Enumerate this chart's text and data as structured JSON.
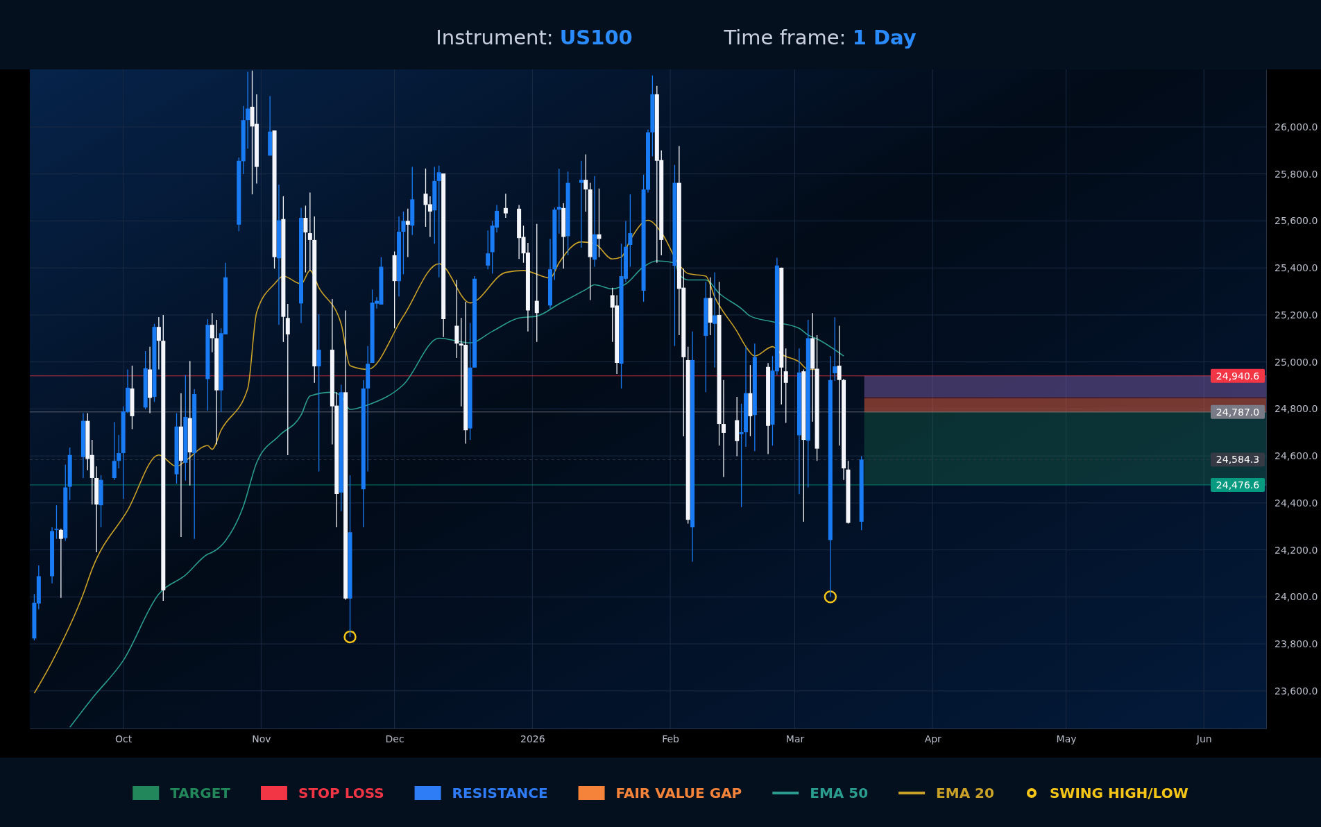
{
  "chart_data": {
    "type": "candlestick",
    "title": "Instrument: US100",
    "subtitle": "Time frame: 1 Day",
    "x": [
      "2025-09-11",
      "2025-09-12",
      "2025-09-15",
      "2025-09-16",
      "2025-09-17",
      "2025-09-18",
      "2025-09-19",
      "2025-09-22",
      "2025-09-23",
      "2025-09-24",
      "2025-09-25",
      "2025-09-26",
      "2025-09-29",
      "2025-09-30",
      "2025-10-01",
      "2025-10-02",
      "2025-10-03",
      "2025-10-06",
      "2025-10-07",
      "2025-10-08",
      "2025-10-09",
      "2025-10-10",
      "2025-10-13",
      "2025-10-14",
      "2025-10-15",
      "2025-10-16",
      "2025-10-17",
      "2025-10-20",
      "2025-10-21",
      "2025-10-22",
      "2025-10-23",
      "2025-10-24",
      "2025-10-27",
      "2025-10-28",
      "2025-10-29",
      "2025-10-30",
      "2025-10-31",
      "2025-11-03",
      "2025-11-04",
      "2025-11-05",
      "2025-11-06",
      "2025-11-07",
      "2025-11-10",
      "2025-11-11",
      "2025-11-12",
      "2025-11-13",
      "2025-11-14",
      "2025-11-17",
      "2025-11-18",
      "2025-11-19",
      "2025-11-20",
      "2025-11-21",
      "2025-11-24",
      "2025-11-25",
      "2025-11-26",
      "2025-11-27",
      "2025-11-28",
      "2025-12-01",
      "2025-12-02",
      "2025-12-03",
      "2025-12-04",
      "2025-12-05",
      "2025-12-08",
      "2025-12-09",
      "2025-12-10",
      "2025-12-11",
      "2025-12-12",
      "2025-12-15",
      "2025-12-16",
      "2025-12-17",
      "2025-12-18",
      "2025-12-19",
      "2025-12-22",
      "2025-12-23",
      "2025-12-24",
      "2025-12-26",
      "2025-12-29",
      "2025-12-30",
      "2025-12-31",
      "2026-01-02",
      "2026-01-05",
      "2026-01-06",
      "2026-01-07",
      "2026-01-08",
      "2026-01-09",
      "2026-01-12",
      "2026-01-13",
      "2026-01-14",
      "2026-01-15",
      "2026-01-16",
      "2026-01-19",
      "2026-01-20",
      "2026-01-21",
      "2026-01-22",
      "2026-01-23",
      "2026-01-26",
      "2026-01-27",
      "2026-01-28",
      "2026-01-29",
      "2026-01-30",
      "2026-02-02",
      "2026-02-03",
      "2026-02-04",
      "2026-02-05",
      "2026-02-06",
      "2026-02-09",
      "2026-02-10",
      "2026-02-11",
      "2026-02-12",
      "2026-02-13",
      "2026-02-16",
      "2026-02-17",
      "2026-02-18",
      "2026-02-19",
      "2026-02-20",
      "2026-02-23",
      "2026-02-24",
      "2026-02-25",
      "2026-02-26",
      "2026-02-27",
      "2026-03-02",
      "2026-03-03",
      "2026-03-04",
      "2026-03-05",
      "2026-03-06",
      "2026-03-09",
      "2026-03-10",
      "2026-03-11",
      "2026-03-12",
      "2026-03-13",
      "2026-03-16"
    ],
    "ohlc": [
      [
        23823,
        24012,
        23815,
        23975
      ],
      [
        23972,
        24134,
        23947,
        24088
      ],
      [
        24088,
        24296,
        24058,
        24280
      ],
      [
        24285,
        24390,
        24247,
        24290
      ],
      [
        24285,
        24290,
        23996,
        24247
      ],
      [
        24250,
        24563,
        24239,
        24466
      ],
      [
        24469,
        24636,
        24412,
        24604
      ],
      [
        24595,
        24782,
        24506,
        24749
      ],
      [
        24749,
        24782,
        24539,
        24587
      ],
      [
        24604,
        24668,
        24393,
        24506
      ],
      [
        24506,
        24555,
        24190,
        24393
      ],
      [
        24390,
        24518,
        24296,
        24498
      ],
      [
        24506,
        24744,
        24498,
        24579
      ],
      [
        24579,
        24689,
        24547,
        24612
      ],
      [
        24612,
        24811,
        24417,
        24790
      ],
      [
        24787,
        24968,
        24782,
        24890
      ],
      [
        24887,
        24984,
        24714,
        24769
      ],
      [
        24806,
        25046,
        24798,
        24973
      ],
      [
        24968,
        25065,
        24782,
        24847
      ],
      [
        24851,
        25162,
        24830,
        25149
      ],
      [
        25149,
        25191,
        24968,
        25090
      ],
      [
        25090,
        25200,
        23983,
        24028
      ],
      [
        24522,
        24782,
        24482,
        24725
      ],
      [
        24725,
        24867,
        24255,
        24579
      ],
      [
        24571,
        24944,
        24495,
        24766
      ],
      [
        24761,
        25004,
        24474,
        24615
      ],
      [
        24612,
        24884,
        24247,
        24863
      ],
      [
        24927,
        25182,
        24793,
        25158
      ],
      [
        25158,
        25208,
        25041,
        25101
      ],
      [
        25101,
        25179,
        24649,
        24879
      ],
      [
        24879,
        25143,
        24787,
        25122
      ],
      [
        25117,
        25422,
        25117,
        25360
      ],
      [
        25584,
        25870,
        25556,
        25856
      ],
      [
        25854,
        26089,
        25799,
        26029
      ],
      [
        26029,
        26235,
        25908,
        26078
      ],
      [
        26086,
        26240,
        25713,
        26002
      ],
      [
        26013,
        26139,
        25759,
        25830
      ],
      [
        25878,
        26131,
        25878,
        25980
      ],
      [
        25985,
        25985,
        25397,
        25446
      ],
      [
        25441,
        25754,
        25158,
        25603
      ],
      [
        25608,
        25705,
        25085,
        25192
      ],
      [
        25187,
        25247,
        24603,
        25117
      ],
      [
        25249,
        25656,
        25166,
        25613
      ],
      [
        25613,
        25665,
        25381,
        25551
      ],
      [
        25548,
        25721,
        25389,
        25519
      ],
      [
        25519,
        25619,
        24911,
        24981
      ],
      [
        24981,
        25203,
        24534,
        25052
      ],
      [
        25052,
        25268,
        24649,
        24811
      ],
      [
        24814,
        24871,
        24296,
        24438
      ],
      [
        24444,
        24903,
        24365,
        24871
      ],
      [
        24871,
        25219,
        23988,
        23993
      ],
      [
        23993,
        24518,
        23830,
        24275
      ],
      [
        24458,
        24923,
        24296,
        24887
      ],
      [
        24887,
        25068,
        24534,
        24992
      ],
      [
        24996,
        25308,
        24996,
        25252
      ],
      [
        25248,
        25276,
        25227,
        25260
      ],
      [
        25244,
        25446,
        25244,
        25405
      ],
      [
        25454,
        25470,
        25143,
        25344
      ],
      [
        25344,
        25619,
        25279,
        25554
      ],
      [
        25554,
        25640,
        25373,
        25600
      ],
      [
        25600,
        25652,
        25446,
        25584
      ],
      [
        25580,
        25830,
        25540,
        25692
      ],
      [
        25716,
        25823,
        25575,
        25668
      ],
      [
        25671,
        25705,
        25532,
        25640
      ],
      [
        25645,
        25830,
        25503,
        25770
      ],
      [
        25770,
        25835,
        25360,
        25807
      ],
      [
        25802,
        25802,
        25106,
        25182
      ],
      [
        25154,
        25349,
        25017,
        25078
      ],
      [
        25078,
        25187,
        24811,
        25070
      ],
      [
        25073,
        25256,
        24652,
        24709
      ],
      [
        24717,
        25166,
        24668,
        24976
      ],
      [
        24976,
        25365,
        24976,
        25354
      ],
      [
        25410,
        25559,
        25394,
        25462
      ],
      [
        25467,
        25600,
        25376,
        25580
      ],
      [
        25572,
        25668,
        25551,
        25643
      ],
      [
        25655,
        25716,
        25613,
        25632
      ],
      [
        25652,
        25668,
        25438,
        25527
      ],
      [
        25532,
        25580,
        25422,
        25462
      ],
      [
        25465,
        25507,
        25130,
        25219
      ],
      [
        25260,
        25587,
        25085,
        25208
      ],
      [
        25240,
        25524,
        25227,
        25394
      ],
      [
        25394,
        25657,
        25349,
        25648
      ],
      [
        25648,
        25822,
        25546,
        25660
      ],
      [
        25655,
        25676,
        25397,
        25532
      ],
      [
        25535,
        25810,
        25454,
        25762
      ],
      [
        25762,
        25856,
        25486,
        25775
      ],
      [
        25775,
        25883,
        25640,
        25734
      ],
      [
        25734,
        25762,
        25263,
        25446
      ],
      [
        25435,
        25791,
        25405,
        25543
      ],
      [
        25543,
        25738,
        25446,
        25524
      ],
      [
        25284,
        25316,
        25085,
        25231
      ],
      [
        25240,
        25284,
        24949,
        24996
      ],
      [
        24992,
        25503,
        24887,
        25365
      ],
      [
        25354,
        25600,
        25341,
        25490
      ],
      [
        25498,
        25713,
        25405,
        25548
      ],
      [
        25303,
        25797,
        25256,
        25734
      ],
      [
        25733,
        25989,
        25721,
        25977
      ],
      [
        25977,
        26219,
        25875,
        26139
      ],
      [
        26139,
        26175,
        25422,
        25856
      ],
      [
        25859,
        25900,
        25454,
        25519
      ],
      [
        25409,
        25838,
        25068,
        25762
      ],
      [
        25762,
        25919,
        25114,
        25311
      ],
      [
        25316,
        25397,
        24684,
        25020
      ],
      [
        25008,
        25065,
        24312,
        24328
      ],
      [
        24296,
        25130,
        24150,
        25008
      ],
      [
        25111,
        25341,
        24871,
        25272
      ],
      [
        25272,
        25360,
        25114,
        25167
      ],
      [
        25162,
        25381,
        24976,
        25198
      ],
      [
        25200,
        25341,
        24644,
        24736
      ],
      [
        24736,
        24923,
        24510,
        24698
      ],
      [
        24752,
        24851,
        24599,
        24663
      ],
      [
        24693,
        24822,
        24382,
        24701
      ],
      [
        24701,
        25065,
        24639,
        24867
      ],
      [
        24867,
        24987,
        24684,
        24769
      ],
      [
        24774,
        25078,
        24620,
        25020
      ],
      [
        24979,
        24995,
        24608,
        24728
      ],
      [
        24733,
        25025,
        24644,
        24963
      ],
      [
        24960,
        25443,
        24944,
        25410
      ],
      [
        25401,
        25401,
        24819,
        24976
      ],
      [
        24960,
        25057,
        24741,
        24911
      ],
      [
        24688,
        25057,
        24437,
        24955
      ],
      [
        24960,
        24968,
        24320,
        24668
      ],
      [
        24665,
        25179,
        24466,
        25101
      ],
      [
        25101,
        25208,
        24746,
        24971
      ],
      [
        24971,
        25114,
        24579,
        24631
      ],
      [
        24242,
        25025,
        24000,
        24923
      ],
      [
        24952,
        25190,
        24919,
        24981
      ],
      [
        24984,
        25154,
        24644,
        24923
      ],
      [
        24923,
        24928,
        24498,
        24547
      ],
      [
        24542,
        24579,
        24312,
        24315
      ],
      [
        24320,
        24599,
        24284,
        24584.3
      ]
    ],
    "series": [
      {
        "name": "EMA 50",
        "type": "line",
        "color": "#2a9d8f",
        "x": [
          "2025-09-19",
          "2025-09-24",
          "2025-10-01",
          "2025-10-09",
          "2025-10-15",
          "2025-10-20",
          "2025-10-21",
          "2025-10-24",
          "2025-10-28",
          "2025-10-31",
          "2025-11-05",
          "2025-11-10",
          "2025-11-12",
          "2025-11-17",
          "2025-11-19",
          "2025-11-21",
          "2025-11-25",
          "2025-12-03",
          "2025-12-11",
          "2025-12-18",
          "2025-12-23",
          "2025-12-29",
          "2026-01-02",
          "2026-01-07",
          "2026-01-13",
          "2026-01-15",
          "2026-01-19",
          "2026-01-22",
          "2026-01-26",
          "2026-01-29",
          "2026-02-02",
          "2026-02-03",
          "2026-02-05",
          "2026-02-09",
          "2026-02-12",
          "2026-02-17",
          "2026-02-19",
          "2026-02-24",
          "2026-03-02",
          "2026-03-04",
          "2026-03-06",
          "2026-03-12"
        ],
        "values": [
          23445,
          23568,
          23729,
          24012,
          24093,
          24182,
          24190,
          24239,
          24385,
          24571,
          24685,
          24774,
          24855,
          24871,
          24855,
          24798,
          24817,
          24903,
          25101,
          25081,
          25130,
          25187,
          25195,
          25247,
          25308,
          25328,
          25311,
          25332,
          25405,
          25430,
          25422,
          25373,
          25349,
          25349,
          25292,
          25227,
          25195,
          25171,
          25143,
          25114,
          25098,
          25025
        ]
      },
      {
        "name": "EMA 20",
        "type": "line",
        "color": "#c9a227",
        "x": [
          "2025-09-11",
          "2025-09-15",
          "2025-09-22",
          "2025-09-24",
          "2025-10-02",
          "2025-10-09",
          "2025-10-13",
          "2025-10-15",
          "2025-10-20",
          "2025-10-21",
          "2025-10-23",
          "2025-10-29",
          "2025-10-31",
          "2025-11-04",
          "2025-11-06",
          "2025-11-10",
          "2025-11-12",
          "2025-11-14",
          "2025-11-19",
          "2025-11-21",
          "2025-11-25",
          "2025-12-03",
          "2025-12-11",
          "2025-12-18",
          "2025-12-26",
          "2025-12-30",
          "2026-01-05",
          "2026-01-07",
          "2026-01-12",
          "2026-01-15",
          "2026-01-19",
          "2026-01-21",
          "2026-01-23",
          "2026-01-27",
          "2026-01-30",
          "2026-02-03",
          "2026-02-05",
          "2026-02-09",
          "2026-02-11",
          "2026-02-16",
          "2026-02-18",
          "2026-02-20",
          "2026-02-24",
          "2026-02-26",
          "2026-03-02",
          "2026-03-04",
          "2026-03-06"
        ],
        "values": [
          23590,
          23724,
          24012,
          24118,
          24369,
          24604,
          24555,
          24579,
          24644,
          24628,
          24709,
          24887,
          25211,
          25332,
          25365,
          25332,
          25389,
          25316,
          25162,
          24984,
          24968,
          25195,
          25418,
          25251,
          25381,
          25389,
          25357,
          25422,
          25511,
          25503,
          25438,
          25446,
          25519,
          25603,
          25551,
          25414,
          25376,
          25365,
          25276,
          25130,
          25065,
          25025,
          25065,
          25033,
          25000,
          24968,
          24968
        ]
      },
      {
        "name": "SWING HIGH/LOW",
        "type": "scatter",
        "color": "#f5c518",
        "marker": "circle",
        "x": [
          "2025-11-21",
          "2026-03-09"
        ],
        "values": [
          23830,
          24000
        ]
      }
    ],
    "bands": [
      {
        "axis": "y",
        "from": 24476.6,
        "to": 24787.0,
        "label": "TARGET",
        "color": "#22875a"
      },
      {
        "axis": "y",
        "from": 24787.0,
        "to": 24940.6,
        "label": "STOP LOSS",
        "color": "#f23645"
      },
      {
        "axis": "y",
        "from": 24850,
        "to": 24940.6,
        "label": "RESISTANCE",
        "color": "#2f7df6"
      },
      {
        "axis": "y",
        "from": 24785,
        "to": 24845,
        "label": "FAIR VALUE GAP",
        "color": "#f5843a"
      }
    ],
    "ref_lines": [
      {
        "axis": "y",
        "value": 24940.6,
        "label": "24,940.6",
        "color": "#f23645"
      },
      {
        "axis": "y",
        "value": 24787.0,
        "label": "24,787.0",
        "color": "#787b86"
      },
      {
        "axis": "y",
        "value": 24584.3,
        "label": "24,584.3",
        "color": "#363a45",
        "line_style": "dashed"
      },
      {
        "axis": "y",
        "value": 24476.6,
        "label": "24,476.6",
        "color": "#089981"
      }
    ],
    "xlim": [
      "2025-09-10",
      "2026-06-15"
    ],
    "xticks": [
      {
        "value": "2025-10-01",
        "label": "Oct"
      },
      {
        "value": "2025-11-01",
        "label": "Nov"
      },
      {
        "value": "2025-12-01",
        "label": "Dec"
      },
      {
        "value": "2026-01-01",
        "label": "2026"
      },
      {
        "value": "2026-02-01",
        "label": "Feb"
      },
      {
        "value": "2026-03-01",
        "label": "Mar"
      },
      {
        "value": "2026-04-01",
        "label": "Apr"
      },
      {
        "value": "2026-05-01",
        "label": "May"
      },
      {
        "value": "2026-06-01",
        "label": "Jun"
      }
    ],
    "ylim": [
      23440,
      26245
    ],
    "yticks": [
      {
        "value": 23600,
        "label": "23,600.0"
      },
      {
        "value": 23800,
        "label": "23,800.0"
      },
      {
        "value": 24000,
        "label": "24,000.0"
      },
      {
        "value": 24200,
        "label": "24,200.0"
      },
      {
        "value": 24400,
        "label": "24,400.0"
      },
      {
        "value": 24600,
        "label": "24,600.0"
      },
      {
        "value": 24800,
        "label": "24,800.0"
      },
      {
        "value": 25000,
        "label": "25,000.0"
      },
      {
        "value": 25200,
        "label": "25,200.0"
      },
      {
        "value": 25400,
        "label": "25,400.0"
      },
      {
        "value": 25600,
        "label": "25,600.0"
      },
      {
        "value": 25800,
        "label": "25,800.0"
      },
      {
        "value": 26000,
        "label": "26,000.0"
      }
    ],
    "grid": true,
    "legend": "bottom"
  }
}
